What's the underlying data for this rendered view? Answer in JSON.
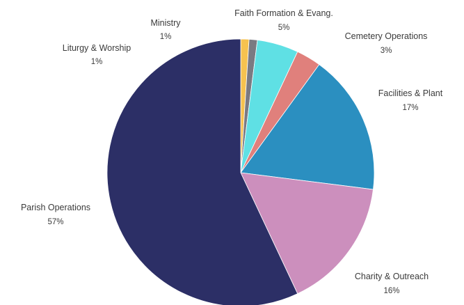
{
  "chart_data": {
    "type": "pie",
    "start_angle_deg": 0,
    "direction": "clockwise",
    "slices": [
      {
        "key": "liturgy",
        "label": "Liturgy & Worship",
        "pct_label": "1%",
        "value": 1,
        "color": "#f6c24f"
      },
      {
        "key": "ministry",
        "label": "Ministry",
        "pct_label": "1%",
        "value": 1,
        "color": "#7a7a82"
      },
      {
        "key": "faith",
        "label": "Faith Formation & Evang.",
        "pct_label": "5%",
        "value": 5,
        "color": "#5fe0e4"
      },
      {
        "key": "cemetery",
        "label": "Cemetery Operations",
        "pct_label": "3%",
        "value": 3,
        "color": "#e0807c"
      },
      {
        "key": "facilities",
        "label": "Facilities & Plant",
        "pct_label": "17%",
        "value": 17,
        "color": "#2b8fc0"
      },
      {
        "key": "charity",
        "label": "Charity & Outreach",
        "pct_label": "16%",
        "value": 16,
        "color": "#cc8fbd"
      },
      {
        "key": "parish",
        "label": "Parish Operations",
        "pct_label": "57%",
        "value": 57,
        "color": "#2c2f66"
      }
    ]
  }
}
